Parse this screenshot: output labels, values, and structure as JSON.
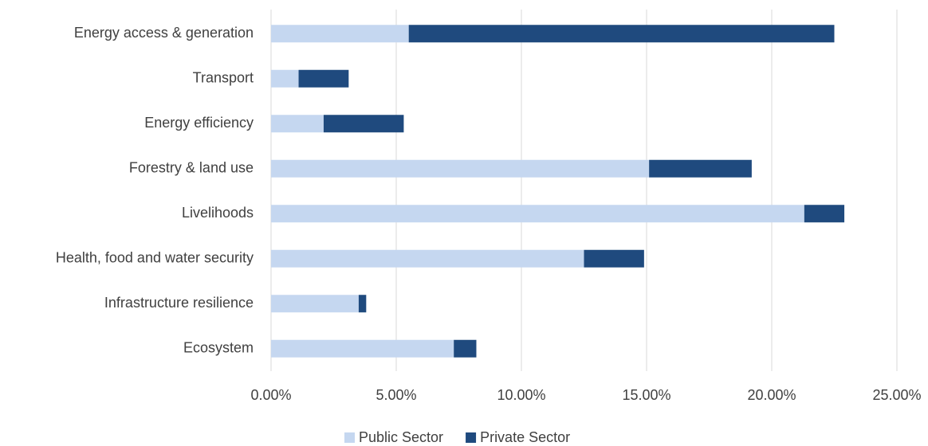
{
  "chart_data": {
    "type": "stacked-bar-horizontal",
    "categories": [
      "Energy access & generation",
      "Transport",
      "Energy efficiency",
      "Forestry & land use",
      "Livelihoods",
      "Health, food and water security",
      "Infrastructure resilience",
      "Ecosystem"
    ],
    "series": [
      {
        "name": "Public Sector",
        "color": "#c5d7f0",
        "values": [
          5.5,
          1.1,
          2.1,
          15.1,
          21.3,
          12.5,
          3.5,
          7.3
        ]
      },
      {
        "name": "Private Sector",
        "color": "#1f4a7e",
        "values": [
          17.0,
          2.0,
          3.2,
          4.1,
          1.6,
          2.4,
          0.3,
          0.9
        ]
      }
    ],
    "xlim": [
      0,
      25
    ],
    "xticks": [
      {
        "value": 0,
        "label": "0.00%"
      },
      {
        "value": 5,
        "label": "5.00%"
      },
      {
        "value": 10,
        "label": "10.00%"
      },
      {
        "value": 15,
        "label": "15.00%"
      },
      {
        "value": 20,
        "label": "20.00%"
      },
      {
        "value": 25,
        "label": "25.00%"
      }
    ],
    "grid": true,
    "legend": "bottom"
  }
}
